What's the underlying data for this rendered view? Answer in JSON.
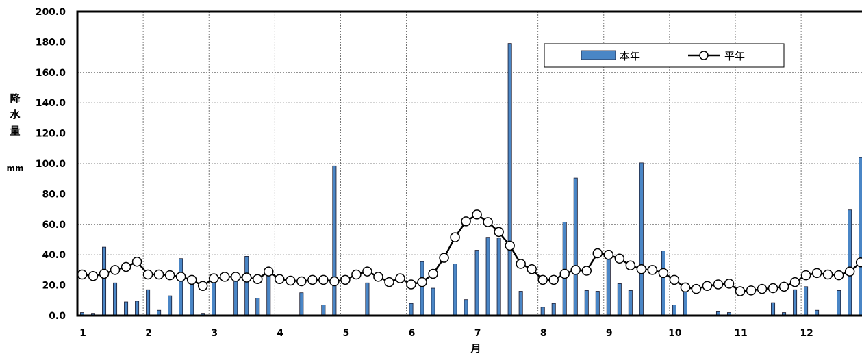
{
  "chart_data": {
    "type": "bar",
    "title": "",
    "xlabel": "月",
    "ylabel": "降水量 mm",
    "ylabel_lines": [
      "降",
      "水",
      "量",
      "mm"
    ],
    "ylim": [
      0,
      200
    ],
    "yticks": [
      "0.0",
      "20.0",
      "40.0",
      "60.0",
      "80.0",
      "100.0",
      "120.0",
      "140.0",
      "160.0",
      "180.0",
      "200.0"
    ],
    "x_tick_labels": [
      "1",
      "2",
      "3",
      "4",
      "5",
      "6",
      "7",
      "8",
      "9",
      "10",
      "11",
      "12"
    ],
    "periods_per_month": 6,
    "grid": true,
    "legend_position": "top-right",
    "colors": {
      "bar": "#4a86c6",
      "bar_edge": "#1a1a2e",
      "line": "#000000",
      "marker_fill": "#ffffff"
    },
    "series": [
      {
        "name": "本年",
        "type": "bar",
        "values": [
          2,
          1.5,
          45,
          21.5,
          9,
          9.5,
          17,
          3.5,
          13,
          37.5,
          21,
          1.5,
          24,
          0,
          24,
          39,
          11.5,
          28,
          0,
          0,
          15,
          0,
          7,
          98.5,
          0,
          0,
          21.5,
          0,
          0,
          0,
          8,
          35.5,
          18,
          0,
          34,
          10.5,
          43,
          51.5,
          51,
          179,
          16,
          0,
          5.5,
          8,
          61.5,
          90.5,
          16.5,
          16,
          43,
          21,
          16.5,
          100.5,
          0,
          42.5,
          7,
          17.5,
          0,
          0,
          2.5,
          2,
          0,
          0,
          0,
          8.5,
          2,
          17,
          19,
          3.5,
          0,
          16.5,
          69.5,
          104
        ]
      },
      {
        "name": "平年",
        "type": "line",
        "values": [
          27,
          26,
          27.5,
          30,
          32,
          35.5,
          27,
          27,
          26.5,
          25.5,
          23.5,
          19.5,
          24.5,
          25.5,
          25.5,
          25,
          24,
          29,
          24,
          23,
          22.5,
          23.5,
          23.5,
          22.5,
          23.5,
          27,
          29,
          25.5,
          22,
          24.5,
          20.5,
          22,
          27.5,
          38,
          51.5,
          62,
          66.5,
          61.5,
          55,
          46,
          34,
          30.5,
          23.5,
          23.5,
          27.5,
          30,
          29.5,
          41,
          40,
          37.5,
          33,
          30.5,
          30,
          28,
          23.5,
          18.5,
          17.5,
          19.5,
          20.5,
          21,
          16,
          16.5,
          17.5,
          18,
          19,
          22,
          26.5,
          28,
          27,
          26.5,
          29,
          35
        ]
      }
    ]
  }
}
